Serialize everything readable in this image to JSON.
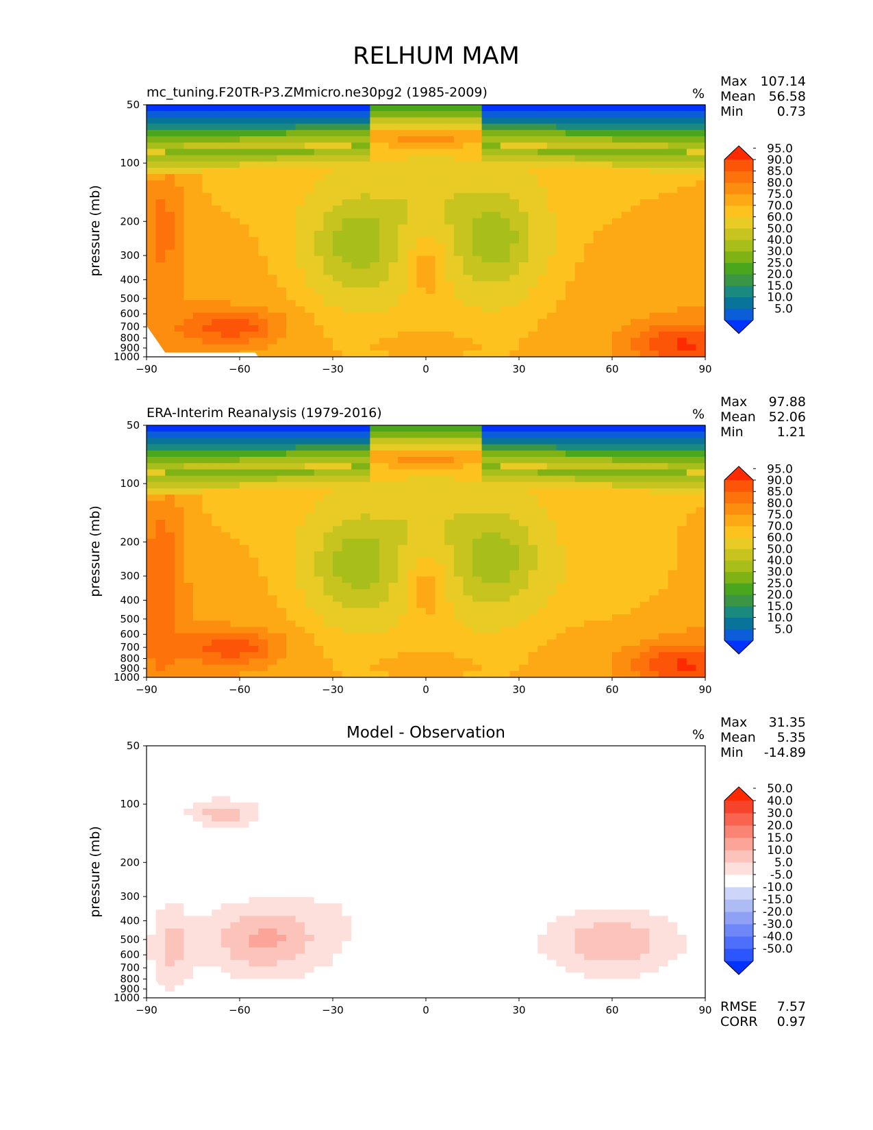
{
  "figure_title": "RELHUM MAM",
  "chart_data": [
    {
      "type": "heatmap",
      "subtype": "filled-contour",
      "title": "mc_tuning.F20TR-P3.ZMmicro.ne30pg2 (1985-2009)",
      "title_position": "left",
      "units": "%",
      "xlabel": "",
      "ylabel": "pressure (mb)",
      "x_ticks": [
        -90,
        -60,
        -30,
        0,
        30,
        60,
        90
      ],
      "x_tick_labels": [
        "−90",
        "−60",
        "−30",
        "0",
        "30",
        "60",
        "90"
      ],
      "y_ticks": [
        50,
        100,
        200,
        300,
        400,
        500,
        600,
        700,
        800,
        900,
        1000
      ],
      "xlim": [
        -90,
        90
      ],
      "ylim": [
        1000,
        50
      ],
      "stats": [
        {
          "label": "Max",
          "value": "107.14"
        },
        {
          "label": "Mean",
          "value": "56.58"
        },
        {
          "label": "Min",
          "value": "0.73"
        }
      ],
      "colorbar": {
        "levels": [
          "5.0",
          "10.0",
          "15.0",
          "20.0",
          "25.0",
          "30.0",
          "40.0",
          "50.0",
          "60.0",
          "70.0",
          "75.0",
          "80.0",
          "85.0",
          "90.0",
          "95.0"
        ],
        "colors": [
          "#0033ff",
          "#0b5ed8",
          "#08749a",
          "#1b8a7e",
          "#3a9545",
          "#4aa61c",
          "#7fb315",
          "#a8be1a",
          "#c8c41f",
          "#e9cb25",
          "#fdc21e",
          "#fda815",
          "#fd8d0f",
          "#fd720b",
          "#fd5508",
          "#ff2a00"
        ]
      }
    },
    {
      "type": "heatmap",
      "subtype": "filled-contour",
      "title": "ERA-Interim Reanalysis (1979-2016)",
      "title_position": "left",
      "units": "%",
      "xlabel": "",
      "ylabel": "pressure (mb)",
      "x_ticks": [
        -90,
        -60,
        -30,
        0,
        30,
        60,
        90
      ],
      "x_tick_labels": [
        "−90",
        "−60",
        "−30",
        "0",
        "30",
        "60",
        "90"
      ],
      "y_ticks": [
        50,
        100,
        200,
        300,
        400,
        500,
        600,
        700,
        800,
        900,
        1000
      ],
      "xlim": [
        -90,
        90
      ],
      "ylim": [
        1000,
        50
      ],
      "stats": [
        {
          "label": "Max",
          "value": "97.88"
        },
        {
          "label": "Mean",
          "value": "52.06"
        },
        {
          "label": "Min",
          "value": "1.21"
        }
      ],
      "colorbar": {
        "levels": [
          "5.0",
          "10.0",
          "15.0",
          "20.0",
          "25.0",
          "30.0",
          "40.0",
          "50.0",
          "60.0",
          "70.0",
          "75.0",
          "80.0",
          "85.0",
          "90.0",
          "95.0"
        ],
        "colors": [
          "#0033ff",
          "#0b5ed8",
          "#08749a",
          "#1b8a7e",
          "#3a9545",
          "#4aa61c",
          "#7fb315",
          "#a8be1a",
          "#c8c41f",
          "#e9cb25",
          "#fdc21e",
          "#fda815",
          "#fd8d0f",
          "#fd720b",
          "#fd5508",
          "#ff2a00"
        ]
      }
    },
    {
      "type": "heatmap",
      "subtype": "filled-contour",
      "title": "Model - Observation",
      "title_position": "center",
      "units": "%",
      "xlabel": "",
      "ylabel": "pressure (mb)",
      "x_ticks": [
        -90,
        -60,
        -30,
        0,
        30,
        60,
        90
      ],
      "x_tick_labels": [
        "−90",
        "−60",
        "−30",
        "0",
        "30",
        "60",
        "90"
      ],
      "y_ticks": [
        50,
        100,
        200,
        300,
        400,
        500,
        600,
        700,
        800,
        900,
        1000
      ],
      "xlim": [
        -90,
        90
      ],
      "ylim": [
        1000,
        50
      ],
      "stats": [
        {
          "label": "Max",
          "value": "31.35"
        },
        {
          "label": "Mean",
          "value": "5.35"
        },
        {
          "label": "Min",
          "value": "-14.89"
        }
      ],
      "bottom_stats": [
        {
          "label": "RMSE",
          "value": "7.57"
        },
        {
          "label": "CORR",
          "value": "0.97"
        }
      ],
      "colorbar": {
        "levels": [
          "-50.0",
          "-40.0",
          "-30.0",
          "-20.0",
          "-15.0",
          "-10.0",
          "-5.0",
          "5.0",
          "10.0",
          "15.0",
          "20.0",
          "30.0",
          "40.0",
          "50.0"
        ],
        "colors": [
          "#0033ff",
          "#2a55ff",
          "#4d6ffb",
          "#6f88f7",
          "#8fa1f5",
          "#aebcf6",
          "#cdd6f8",
          "#ffffff",
          "#fde0dc",
          "#fcc3bb",
          "#fba497",
          "#f98473",
          "#f8644f",
          "#f6432c",
          "#ff2a00"
        ]
      }
    }
  ]
}
